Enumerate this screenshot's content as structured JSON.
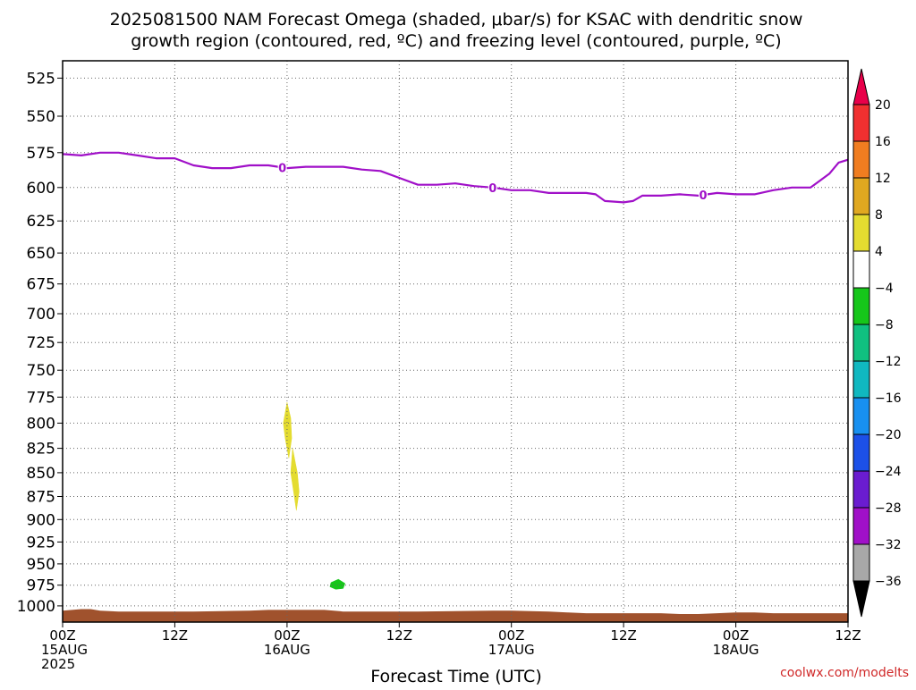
{
  "chart_data": {
    "type": "heatmap",
    "title": "2025081500 NAM Forecast Omega (shaded, μbar/s) for KSAC with dendritic snow",
    "subtitle": "growth region (contoured, red, ºC) and freezing level (contoured, purple, ºC)",
    "xlabel": "Forecast Time (UTC)",
    "ylabel": "",
    "credit": "coolwx.com/modelts",
    "x_range_hours": [
      0,
      84
    ],
    "y_range_hPa": [
      1020,
      514
    ],
    "y_scale": "log-pressure (inverted)",
    "grid": true,
    "y_ticks": [
      525,
      550,
      575,
      600,
      625,
      650,
      675,
      700,
      725,
      750,
      775,
      800,
      825,
      850,
      875,
      900,
      925,
      950,
      975,
      1000
    ],
    "x_ticks": [
      {
        "hour": 0,
        "line1": "00Z",
        "line2": "15AUG",
        "line3": "2025"
      },
      {
        "hour": 12,
        "line1": "12Z",
        "line2": "",
        "line3": ""
      },
      {
        "hour": 24,
        "line1": "00Z",
        "line2": "16AUG",
        "line3": ""
      },
      {
        "hour": 36,
        "line1": "12Z",
        "line2": "",
        "line3": ""
      },
      {
        "hour": 48,
        "line1": "00Z",
        "line2": "17AUG",
        "line3": ""
      },
      {
        "hour": 60,
        "line1": "12Z",
        "line2": "",
        "line3": ""
      },
      {
        "hour": 72,
        "line1": "00Z",
        "line2": "18AUG",
        "line3": ""
      },
      {
        "hour": 84,
        "line1": "12Z",
        "line2": "",
        "line3": ""
      }
    ],
    "colorbar": {
      "levels": [
        20,
        16,
        12,
        8,
        4,
        -4,
        -8,
        -12,
        -16,
        -20,
        -24,
        -28,
        -32,
        -36
      ],
      "colors": [
        "#e8004a",
        "#f03030",
        "#f07d20",
        "#e0a820",
        "#e4dc30",
        "#ffffff",
        "#16c61a",
        "#10c080",
        "#10b8c0",
        "#1890f0",
        "#1c50e8",
        "#6a1cd0",
        "#a010c8",
        "#a8a8a8",
        "#000000"
      ]
    },
    "freezing_level": {
      "color": "#a010c8",
      "label": "0",
      "label_hours": [
        23.5,
        46,
        68.5
      ],
      "hours": [
        0,
        2,
        4,
        6,
        8,
        10,
        12,
        14,
        16,
        18,
        20,
        22,
        24,
        26,
        28,
        30,
        32,
        34,
        36,
        38,
        40,
        42,
        44,
        46,
        48,
        50,
        52,
        54,
        56,
        57,
        58,
        60,
        61,
        62,
        64,
        66,
        68,
        70,
        72,
        74,
        76,
        78,
        80,
        81,
        82,
        83,
        84
      ],
      "pressure": [
        576,
        577,
        575,
        575,
        577,
        579,
        579,
        584,
        586,
        586,
        584,
        584,
        586,
        585,
        585,
        585,
        587,
        588,
        593,
        598,
        598,
        597,
        599,
        600,
        602,
        602,
        604,
        604,
        604,
        605,
        610,
        611,
        610,
        606,
        606,
        605,
        606,
        604,
        605,
        605,
        602,
        600,
        600,
        595,
        590,
        582,
        580
      ]
    },
    "omega_features": [
      {
        "value_range": "4 to 8",
        "color": "#e4dc30",
        "polygon_hour_hPa": [
          [
            24.0,
            780
          ],
          [
            24.4,
            795
          ],
          [
            24.5,
            815
          ],
          [
            24.2,
            835
          ],
          [
            23.8,
            815
          ],
          [
            23.6,
            800
          ]
        ]
      },
      {
        "value_range": "4 to 8",
        "color": "#e4dc30",
        "polygon_hour_hPa": [
          [
            24.6,
            825
          ],
          [
            25.1,
            850
          ],
          [
            25.3,
            870
          ],
          [
            25.0,
            890
          ],
          [
            24.7,
            870
          ],
          [
            24.4,
            850
          ]
        ]
      },
      {
        "value_range": "-8 to -4",
        "color": "#16c61a",
        "polygon_hour_hPa": [
          [
            28.7,
            972
          ],
          [
            29.5,
            968
          ],
          [
            30.2,
            973
          ],
          [
            30.0,
            979
          ],
          [
            29.2,
            980
          ],
          [
            28.6,
            977
          ]
        ]
      }
    ],
    "terrain": {
      "color": "#a0522d",
      "hours": [
        0,
        1,
        2,
        3,
        4,
        6,
        10,
        14,
        20,
        22,
        24,
        28,
        30,
        38,
        46,
        48,
        52,
        54,
        56,
        64,
        66,
        68,
        70,
        72,
        74,
        76,
        78,
        80,
        82,
        84
      ],
      "top_pressure": [
        1006,
        1005,
        1004,
        1004,
        1006,
        1007,
        1007,
        1007,
        1006,
        1005,
        1005,
        1005,
        1007,
        1007,
        1006,
        1006,
        1007,
        1008,
        1009,
        1009,
        1010,
        1010,
        1009,
        1008,
        1008,
        1009,
        1009,
        1009,
        1009,
        1009
      ]
    }
  }
}
